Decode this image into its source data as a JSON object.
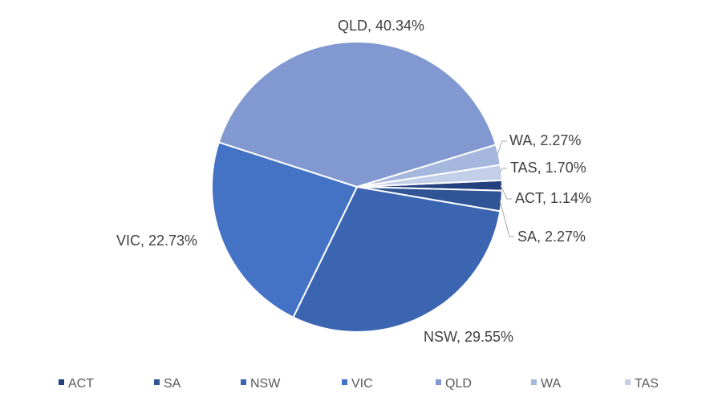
{
  "chart_data": {
    "type": "pie",
    "title": "",
    "legend_position": "bottom",
    "slices": [
      {
        "name": "ACT",
        "value": 1.14,
        "label": "ACT, 1.14%",
        "color": "#24407F"
      },
      {
        "name": "SA",
        "value": 2.27,
        "label": "SA, 2.27%",
        "color": "#2F5597"
      },
      {
        "name": "NSW",
        "value": 29.55,
        "label": "NSW, 29.55%",
        "color": "#3C65B1"
      },
      {
        "name": "VIC",
        "value": 22.73,
        "label": "VIC, 22.73%",
        "color": "#4472C4"
      },
      {
        "name": "QLD",
        "value": 40.34,
        "label": "QLD, 40.34%",
        "color": "#8199D0"
      },
      {
        "name": "WA",
        "value": 2.27,
        "label": "WA, 2.27%",
        "color": "#A6B7DE"
      },
      {
        "name": "TAS",
        "value": 1.7,
        "label": "TAS, 1.70%",
        "color": "#C3CEE8"
      }
    ]
  }
}
